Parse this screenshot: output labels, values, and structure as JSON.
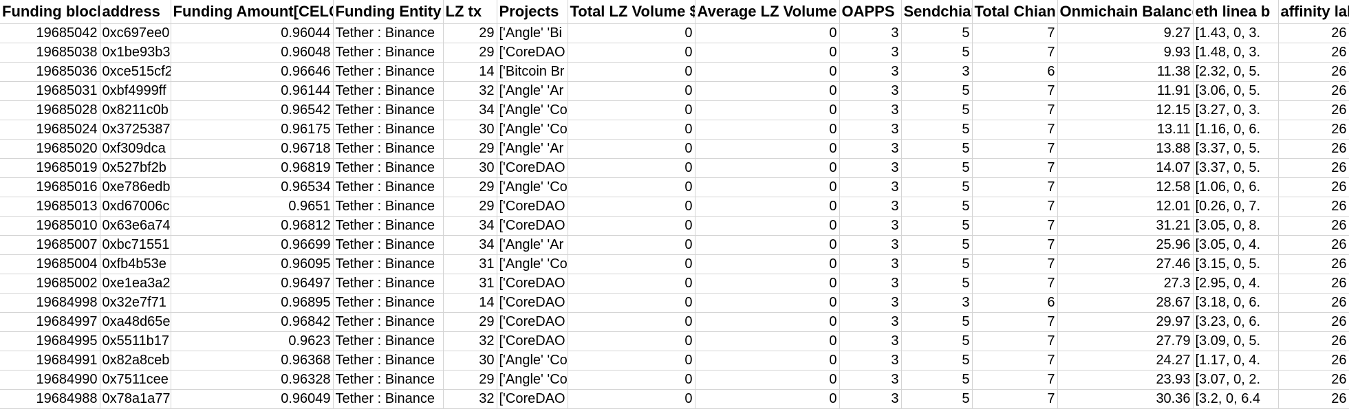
{
  "sheet": {
    "columns": [
      {
        "key": "funding_block",
        "label": "Funding block",
        "align": "right"
      },
      {
        "key": "address",
        "label": "address",
        "align": "left"
      },
      {
        "key": "funding_amount",
        "label": "Funding Amount[CELO]",
        "align": "right"
      },
      {
        "key": "funding_entity",
        "label": "Funding Entity",
        "align": "left"
      },
      {
        "key": "lz_tx",
        "label": "LZ tx",
        "align": "right"
      },
      {
        "key": "projects",
        "label": "Projects",
        "align": "left"
      },
      {
        "key": "total_lz_volume",
        "label": "Total LZ Volume $",
        "align": "right"
      },
      {
        "key": "average_lz_volume",
        "label": "Average LZ Volume $",
        "align": "right"
      },
      {
        "key": "oapps",
        "label": "OAPPS",
        "align": "right"
      },
      {
        "key": "sendchian",
        "label": "Sendchian",
        "align": "right"
      },
      {
        "key": "total_chian",
        "label": "Total Chian",
        "align": "right"
      },
      {
        "key": "onmichain_balance",
        "label": "Onmichain Balance",
        "align": "right"
      },
      {
        "key": "eth_linea_b",
        "label": "eth linea b",
        "align": "left"
      },
      {
        "key": "affinity_label",
        "label": "affinity label",
        "align": "right"
      }
    ],
    "rows": [
      [
        "19685042",
        "0xc697ee0",
        "0.96044",
        "Tether : Binance",
        "29",
        "['Angle' 'Bi",
        "0",
        "0",
        "3",
        "5",
        "7",
        "9.27",
        "[1.43, 0, 3.",
        "26"
      ],
      [
        "19685038",
        "0x1be93b3",
        "0.96048",
        "Tether : Binance",
        "29",
        "['CoreDAO",
        "0",
        "0",
        "3",
        "5",
        "7",
        "9.93",
        "[1.48, 0, 3.",
        "26"
      ],
      [
        "19685036",
        "0xce515cf2",
        "0.96646",
        "Tether : Binance",
        "14",
        "['Bitcoin Br",
        "0",
        "0",
        "3",
        "3",
        "6",
        "11.38",
        "[2.32, 0, 5.",
        "26"
      ],
      [
        "19685031",
        "0xbf4999ff",
        "0.96144",
        "Tether : Binance",
        "32",
        "['Angle' 'Ar",
        "0",
        "0",
        "3",
        "5",
        "7",
        "11.91",
        "[3.06, 0, 5.",
        "26"
      ],
      [
        "19685028",
        "0x8211c0b",
        "0.96542",
        "Tether : Binance",
        "34",
        "['Angle' 'Co",
        "0",
        "0",
        "3",
        "5",
        "7",
        "12.15",
        "[3.27, 0, 3.",
        "26"
      ],
      [
        "19685024",
        "0x3725387",
        "0.96175",
        "Tether : Binance",
        "30",
        "['Angle' 'Co",
        "0",
        "0",
        "3",
        "5",
        "7",
        "13.11",
        "[1.16, 0, 6.",
        "26"
      ],
      [
        "19685020",
        "0xf309dca",
        "0.96718",
        "Tether : Binance",
        "29",
        "['Angle' 'Ar",
        "0",
        "0",
        "3",
        "5",
        "7",
        "13.88",
        "[3.37, 0, 5.",
        "26"
      ],
      [
        "19685019",
        "0x527bf2b",
        "0.96819",
        "Tether : Binance",
        "30",
        "['CoreDAO",
        "0",
        "0",
        "3",
        "5",
        "7",
        "14.07",
        "[3.37, 0, 5.",
        "26"
      ],
      [
        "19685016",
        "0xe786edb",
        "0.96534",
        "Tether : Binance",
        "29",
        "['Angle' 'Co",
        "0",
        "0",
        "3",
        "5",
        "7",
        "12.58",
        "[1.06, 0, 6.",
        "26"
      ],
      [
        "19685013",
        "0xd67006c",
        "0.9651",
        "Tether : Binance",
        "29",
        "['CoreDAO",
        "0",
        "0",
        "3",
        "5",
        "7",
        "12.01",
        "[0.26, 0, 7.",
        "26"
      ],
      [
        "19685010",
        "0x63e6a74",
        "0.96812",
        "Tether : Binance",
        "34",
        "['CoreDAO",
        "0",
        "0",
        "3",
        "5",
        "7",
        "31.21",
        "[3.05, 0, 8.",
        "26"
      ],
      [
        "19685007",
        "0xbc71551",
        "0.96699",
        "Tether : Binance",
        "34",
        "['Angle' 'Ar",
        "0",
        "0",
        "3",
        "5",
        "7",
        "25.96",
        "[3.05, 0, 4.",
        "26"
      ],
      [
        "19685004",
        "0xfb4b53e",
        "0.96095",
        "Tether : Binance",
        "31",
        "['Angle' 'Co",
        "0",
        "0",
        "3",
        "5",
        "7",
        "27.46",
        "[3.15, 0, 5.",
        "26"
      ],
      [
        "19685002",
        "0xe1ea3a2",
        "0.96497",
        "Tether : Binance",
        "31",
        "['CoreDAO",
        "0",
        "0",
        "3",
        "5",
        "7",
        "27.3",
        "[2.95, 0, 4.",
        "26"
      ],
      [
        "19684998",
        "0x32e7f71",
        "0.96895",
        "Tether : Binance",
        "14",
        "['CoreDAO",
        "0",
        "0",
        "3",
        "3",
        "6",
        "28.67",
        "[3.18, 0, 6.",
        "26"
      ],
      [
        "19684997",
        "0xa48d65e",
        "0.96842",
        "Tether : Binance",
        "29",
        "['CoreDAO",
        "0",
        "0",
        "3",
        "5",
        "7",
        "29.97",
        "[3.23, 0, 6.",
        "26"
      ],
      [
        "19684995",
        "0x5511b17",
        "0.9623",
        "Tether : Binance",
        "32",
        "['CoreDAO",
        "0",
        "0",
        "3",
        "5",
        "7",
        "27.79",
        "[3.09, 0, 5.",
        "26"
      ],
      [
        "19684991",
        "0x82a8ceb",
        "0.96368",
        "Tether : Binance",
        "30",
        "['Angle' 'Co",
        "0",
        "0",
        "3",
        "5",
        "7",
        "24.27",
        "[1.17, 0, 4.",
        "26"
      ],
      [
        "19684990",
        "0x7511cee",
        "0.96328",
        "Tether : Binance",
        "29",
        "['Angle' 'Co",
        "0",
        "0",
        "3",
        "5",
        "7",
        "23.93",
        "[3.07, 0, 2.",
        "26"
      ],
      [
        "19684988",
        "0x78a1a77",
        "0.96049",
        "Tether : Binance",
        "32",
        "['CoreDAO",
        "0",
        "0",
        "3",
        "5",
        "7",
        "30.36",
        "[3.2, 0, 6.4",
        "26"
      ]
    ]
  }
}
